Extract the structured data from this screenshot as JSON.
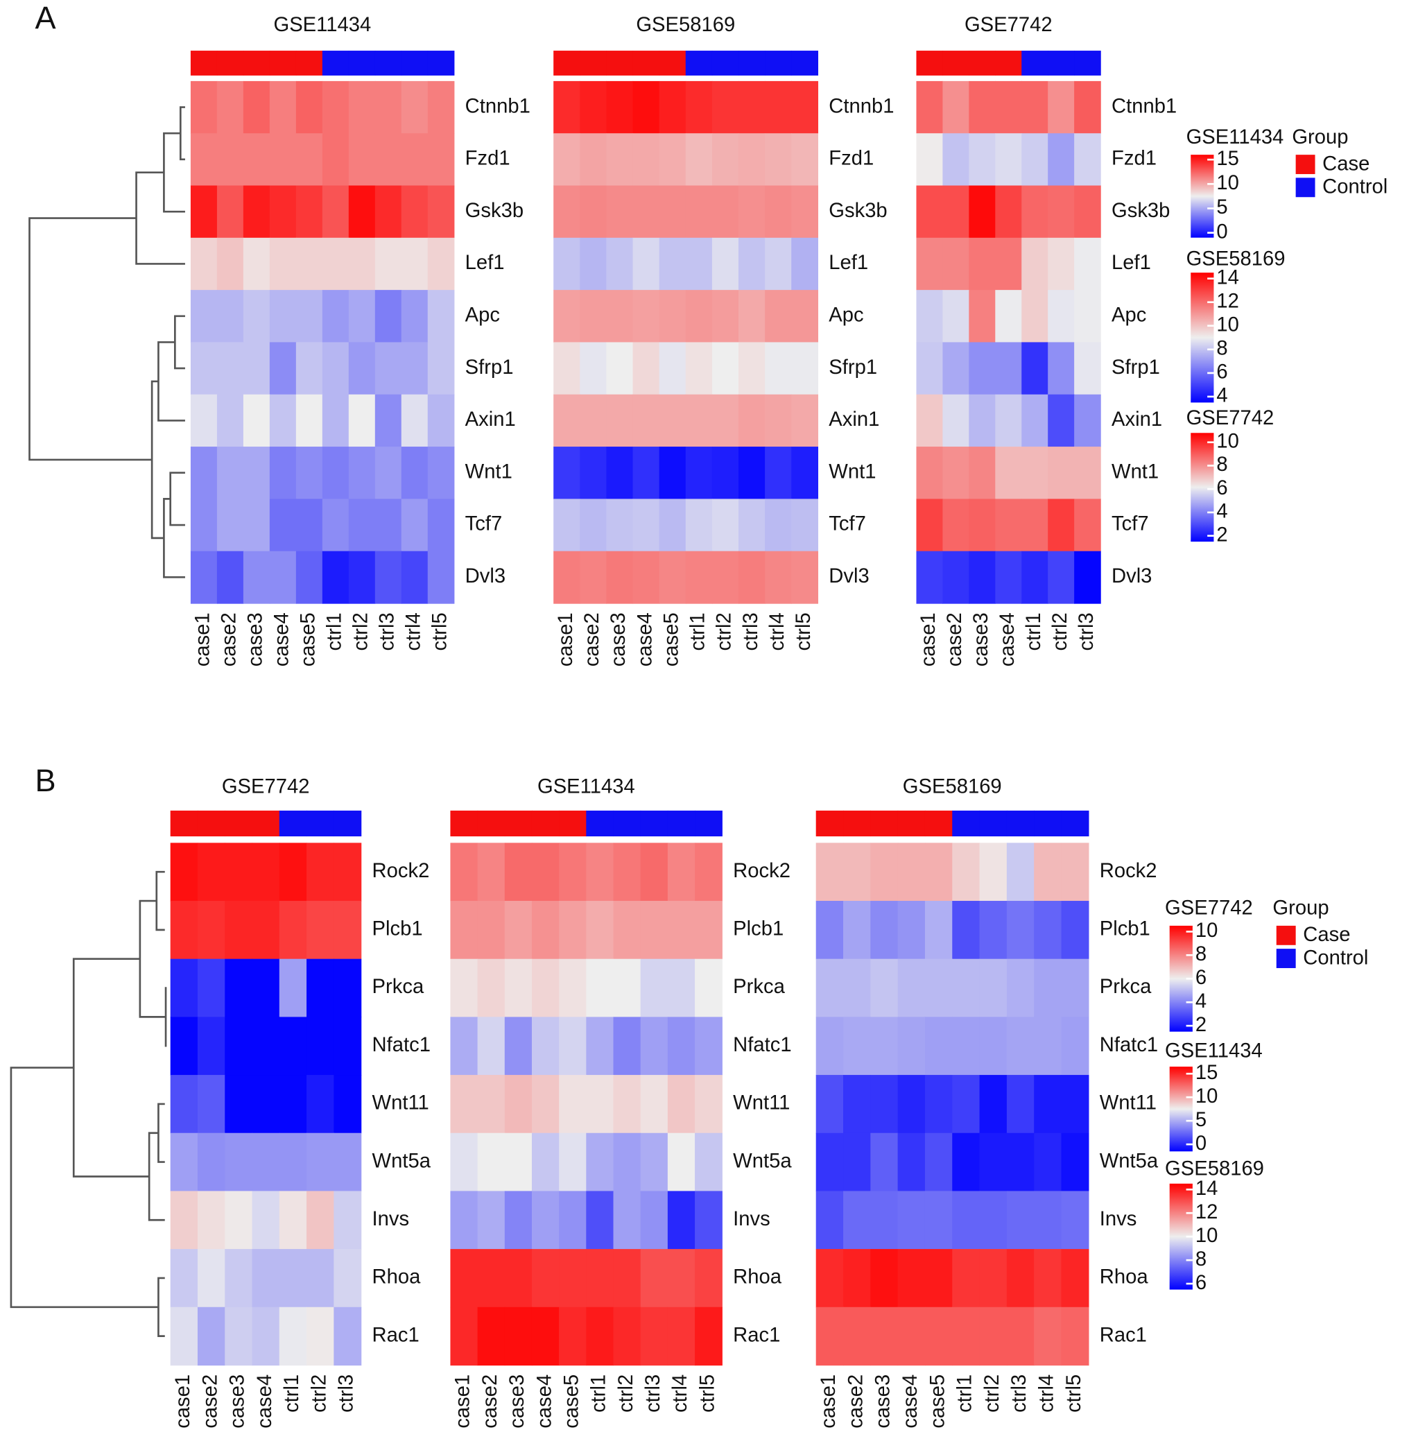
{
  "panels": [
    {
      "label": "A",
      "group_title": "Group",
      "groups": [
        {
          "name": "Case",
          "color": "#f50f0f"
        },
        {
          "name": "Control",
          "color": "#0f0ff5"
        }
      ]
    },
    {
      "label": "B",
      "group_title": "Group",
      "groups": [
        {
          "name": "Case",
          "color": "#f50f0f"
        },
        {
          "name": "Control",
          "color": "#0f0ff5"
        }
      ]
    }
  ],
  "chart_data": [
    {
      "type": "heatmap",
      "title": "GSE11434",
      "columns": [
        "case1",
        "case2",
        "case3",
        "case4",
        "case5",
        "ctrl1",
        "ctrl2",
        "ctrl3",
        "ctrl4",
        "ctrl5"
      ],
      "column_groups": [
        "Case",
        "Case",
        "Case",
        "Case",
        "Case",
        "Control",
        "Control",
        "Control",
        "Control",
        "Control"
      ],
      "rows": [
        "Ctnnb1",
        "Fzd1",
        "Gsk3b",
        "Lef1",
        "Apc",
        "Sfrp1",
        "Axin1",
        "Wnt1",
        "Tcf7",
        "Dvl3"
      ],
      "values": [
        [
          12,
          11.5,
          12.5,
          11.5,
          12.5,
          12,
          11.5,
          11.5,
          11,
          11.5
        ],
        [
          11.5,
          11.5,
          11.5,
          11.5,
          11.5,
          12,
          11.5,
          11.5,
          11.5,
          11.5
        ],
        [
          15,
          13,
          15,
          14.5,
          14,
          13,
          15.5,
          14.5,
          13.5,
          13
        ],
        [
          8.5,
          9,
          8,
          8.5,
          8.5,
          8.5,
          8.5,
          8,
          8,
          8.5
        ],
        [
          5.5,
          5.5,
          6,
          5.5,
          5.5,
          4.5,
          5,
          3.5,
          4.5,
          6
        ],
        [
          6,
          6,
          6,
          4,
          6,
          5.5,
          4.5,
          5,
          5,
          6
        ],
        [
          7,
          6,
          7.5,
          6,
          7.5,
          5.5,
          7.5,
          4,
          7,
          5.5
        ],
        [
          4,
          5,
          5,
          3.5,
          4,
          3.5,
          4,
          4.5,
          3.5,
          4
        ],
        [
          4,
          5,
          5,
          3,
          3,
          4,
          3.5,
          3.5,
          4.5,
          3.5
        ],
        [
          3,
          2,
          4,
          4,
          2.5,
          0,
          0.5,
          2,
          1.5,
          3.5
        ]
      ],
      "color_scale": {
        "lim": [
          -1,
          16
        ],
        "ticks": [
          0,
          5,
          10,
          15
        ],
        "colors": [
          "#0000ff",
          "#eeeeee",
          "#ff0000"
        ]
      }
    },
    {
      "type": "heatmap",
      "title": "GSE58169",
      "columns": [
        "case1",
        "case2",
        "case3",
        "case4",
        "case5",
        "ctrl1",
        "ctrl2",
        "ctrl3",
        "ctrl4",
        "ctrl5"
      ],
      "column_groups": [
        "Case",
        "Case",
        "Case",
        "Case",
        "Case",
        "Control",
        "Control",
        "Control",
        "Control",
        "Control"
      ],
      "rows": [
        "Ctnnb1",
        "Fzd1",
        "Gsk3b",
        "Lef1",
        "Apc",
        "Sfrp1",
        "Axin1",
        "Wnt1",
        "Tcf7",
        "Dvl3"
      ],
      "values": [
        [
          13.5,
          13.8,
          14,
          14.2,
          13.8,
          13.5,
          13.3,
          13.3,
          13.3,
          13.3
        ],
        [
          10.5,
          10.7,
          10.6,
          10.6,
          10.5,
          10.2,
          10.4,
          10.5,
          10.4,
          10.3
        ],
        [
          11.3,
          11.4,
          11.3,
          11.3,
          11.3,
          11.3,
          11.3,
          11.2,
          11.3,
          11.2
        ],
        [
          8,
          7.7,
          8,
          8.5,
          8,
          8,
          8.6,
          8,
          8.3,
          7.6
        ],
        [
          10.8,
          10.9,
          10.9,
          10.8,
          10.9,
          11,
          10.9,
          10.6,
          11,
          11
        ],
        [
          9.4,
          8.8,
          9,
          9.5,
          8.8,
          9.3,
          9,
          9.3,
          8.9,
          8.9
        ],
        [
          10.6,
          10.6,
          10.6,
          10.6,
          10.6,
          10.6,
          10.6,
          10.8,
          10.7,
          10.6
        ],
        [
          4.8,
          4.5,
          4.1,
          4.6,
          3.8,
          4.3,
          4.2,
          3.8,
          4.6,
          4.2
        ],
        [
          8,
          7.8,
          8,
          8.1,
          7.8,
          8.3,
          8.5,
          8.1,
          7.8,
          7.9
        ],
        [
          11.6,
          11.5,
          11.7,
          11.6,
          11.4,
          11.5,
          11.5,
          11.6,
          11.4,
          11.3
        ]
      ],
      "color_scale": {
        "lim": [
          3.5,
          14.5
        ],
        "ticks": [
          4,
          6,
          8,
          10,
          12,
          14
        ],
        "colors": [
          "#0000ff",
          "#eeeeee",
          "#ff0000"
        ]
      }
    },
    {
      "type": "heatmap",
      "title": "GSE7742",
      "columns": [
        "case1",
        "case2",
        "case3",
        "case4",
        "ctrl1",
        "ctrl2",
        "ctrl3"
      ],
      "column_groups": [
        "Case",
        "Case",
        "Case",
        "Case",
        "Control",
        "Control",
        "Control"
      ],
      "rows": [
        "Ctnnb1",
        "Fzd1",
        "Gsk3b",
        "Lef1",
        "Apc",
        "Sfrp1",
        "Axin1",
        "Wnt1",
        "Tcf7",
        "Dvl3"
      ],
      "values": [
        [
          8.8,
          8,
          8.8,
          8.8,
          8.8,
          8,
          9
        ],
        [
          6.2,
          5.3,
          5.6,
          5.8,
          5.5,
          4.6,
          5.6
        ],
        [
          9.3,
          9.3,
          10.6,
          9.5,
          8.8,
          8.7,
          8.9
        ],
        [
          8.2,
          8.2,
          8.5,
          8.5,
          6.8,
          6.5,
          6.1
        ],
        [
          5.5,
          5.8,
          8.3,
          6.1,
          6.8,
          6,
          6.1
        ],
        [
          5.4,
          4.8,
          4.3,
          4.3,
          2.5,
          4.3,
          6
        ],
        [
          6.9,
          5.8,
          5.1,
          5.5,
          4.9,
          3,
          4.3
        ],
        [
          8.2,
          8,
          8.2,
          7.2,
          7.2,
          7.3,
          7.3
        ],
        [
          9.5,
          8.8,
          8.9,
          8.7,
          8.7,
          9.6,
          8.8
        ],
        [
          2.7,
          2.5,
          2.2,
          2.7,
          2.3,
          2.8,
          1.6
        ]
      ],
      "color_scale": {
        "lim": [
          1.5,
          10.8
        ],
        "ticks": [
          2,
          4,
          6,
          8,
          10
        ],
        "colors": [
          "#0000ff",
          "#eeeeee",
          "#ff0000"
        ]
      }
    },
    {
      "type": "heatmap",
      "title": "GSE7742",
      "columns": [
        "case1",
        "case2",
        "case3",
        "case4",
        "ctrl1",
        "ctrl2",
        "ctrl3"
      ],
      "column_groups": [
        "Case",
        "Case",
        "Case",
        "Case",
        "Control",
        "Control",
        "Control"
      ],
      "rows": [
        "Rock2",
        "Plcb1",
        "Prkca",
        "Nfatc1",
        "Wnt11",
        "Wnt5a",
        "Invs",
        "Rhoa",
        "Rac1"
      ],
      "values": [
        [
          10.2,
          10,
          10,
          10,
          10.2,
          9.8,
          9.8
        ],
        [
          9.7,
          9.6,
          9.8,
          9.8,
          9.4,
          9.2,
          9.2
        ],
        [
          2.2,
          2.6,
          1.6,
          1.6,
          4.5,
          1.6,
          1.6
        ],
        [
          1.6,
          2.2,
          1.6,
          1.6,
          1.6,
          1.6,
          1.6
        ],
        [
          3,
          3.2,
          1.6,
          1.6,
          1.6,
          2,
          1.6
        ],
        [
          4.5,
          4.2,
          4.3,
          4.3,
          4.3,
          4.4,
          4.4
        ],
        [
          6.6,
          6.3,
          6.1,
          5.6,
          6.2,
          6.8,
          5.4
        ],
        [
          5.3,
          5.8,
          5.3,
          5,
          5,
          5,
          5.5
        ],
        [
          5.7,
          4.7,
          5.4,
          5.2,
          5.9,
          6.1,
          4.8
        ]
      ],
      "color_scale": {
        "lim": [
          1.5,
          10.5
        ],
        "ticks": [
          2,
          4,
          6,
          8,
          10
        ],
        "colors": [
          "#0000ff",
          "#eeeeee",
          "#ff0000"
        ]
      }
    },
    {
      "type": "heatmap",
      "title": "GSE11434",
      "columns": [
        "case1",
        "case2",
        "case3",
        "case4",
        "case5",
        "ctrl1",
        "ctrl2",
        "ctrl3",
        "ctrl4",
        "ctrl5"
      ],
      "column_groups": [
        "Case",
        "Case",
        "Case",
        "Case",
        "Case",
        "Control",
        "Control",
        "Control",
        "Control",
        "Control"
      ],
      "rows": [
        "Rock2",
        "Plcb1",
        "Prkca",
        "Nfatc1",
        "Wnt11",
        "Wnt5a",
        "Invs",
        "Rhoa",
        "Rac1"
      ],
      "values": [
        [
          12,
          11.5,
          12.5,
          12.5,
          12,
          11.5,
          12,
          12.5,
          11.5,
          12
        ],
        [
          11,
          11,
          10.5,
          11,
          10.5,
          10,
          10.5,
          10.5,
          10.5,
          10.5
        ],
        [
          8,
          8.5,
          8,
          8.5,
          8,
          7.5,
          7.5,
          6.5,
          6.5,
          7.5
        ],
        [
          5,
          6.5,
          4,
          6,
          6.5,
          5,
          3.5,
          4.5,
          4,
          4.5
        ],
        [
          9,
          9,
          9.5,
          9,
          8,
          8,
          8.5,
          8,
          9,
          8.5
        ],
        [
          7,
          7.5,
          7.5,
          6,
          7,
          5,
          4.5,
          5,
          7.5,
          6
        ],
        [
          4.5,
          5,
          3.5,
          4.5,
          4,
          1.5,
          4.5,
          4,
          0,
          1.5
        ],
        [
          15,
          15,
          15,
          14.5,
          14.5,
          14.5,
          14.5,
          13.5,
          13.5,
          14
        ],
        [
          15,
          16,
          16,
          16,
          15,
          15.5,
          15,
          14.5,
          14.5,
          15.5
        ]
      ],
      "color_scale": {
        "lim": [
          -1.5,
          16.5
        ],
        "ticks": [
          0,
          5,
          10,
          15
        ],
        "colors": [
          "#0000ff",
          "#eeeeee",
          "#ff0000"
        ]
      }
    },
    {
      "type": "heatmap",
      "title": "GSE58169",
      "columns": [
        "case1",
        "case2",
        "case3",
        "case4",
        "case5",
        "ctrl1",
        "ctrl2",
        "ctrl3",
        "ctrl4",
        "ctrl5"
      ],
      "column_groups": [
        "Case",
        "Case",
        "Case",
        "Case",
        "Case",
        "Control",
        "Control",
        "Control",
        "Control",
        "Control"
      ],
      "rows": [
        "Rock2",
        "Plcb1",
        "Prkca",
        "Nfatc1",
        "Wnt11",
        "Wnt5a",
        "Invs",
        "Rhoa",
        "Rac1"
      ],
      "values": [
        [
          11,
          11,
          11.2,
          11.2,
          11.2,
          10.6,
          10.2,
          9.3,
          11,
          11
        ],
        [
          8,
          8.6,
          8.1,
          8.3,
          8.8,
          7,
          7.4,
          7.7,
          7.4,
          7
        ],
        [
          9,
          9,
          9.2,
          9,
          9,
          9,
          9,
          8.8,
          8.6,
          8.6
        ],
        [
          8.6,
          8.7,
          8.7,
          8.6,
          8.5,
          8.5,
          8.5,
          8.6,
          8.6,
          8.5
        ],
        [
          7,
          6.5,
          6.5,
          6.2,
          6.5,
          6.7,
          5.8,
          6.6,
          6,
          6
        ],
        [
          6.5,
          6.5,
          7.3,
          6.5,
          7,
          5.8,
          6,
          6,
          6.2,
          5.8
        ],
        [
          7,
          7.5,
          7.5,
          7.6,
          7.6,
          7.4,
          7.4,
          7.5,
          7.5,
          7.6
        ],
        [
          13.7,
          13.9,
          14.2,
          14,
          14,
          13.5,
          13.5,
          13.8,
          13.5,
          13.8
        ],
        [
          12.8,
          12.8,
          12.8,
          12.8,
          12.8,
          12.8,
          12.8,
          12.8,
          12.5,
          12.6
        ]
      ],
      "color_scale": {
        "lim": [
          5.5,
          14.5
        ],
        "ticks": [
          6,
          8,
          10,
          12,
          14
        ],
        "colors": [
          "#0000ff",
          "#eeeeee",
          "#ff0000"
        ]
      }
    }
  ]
}
